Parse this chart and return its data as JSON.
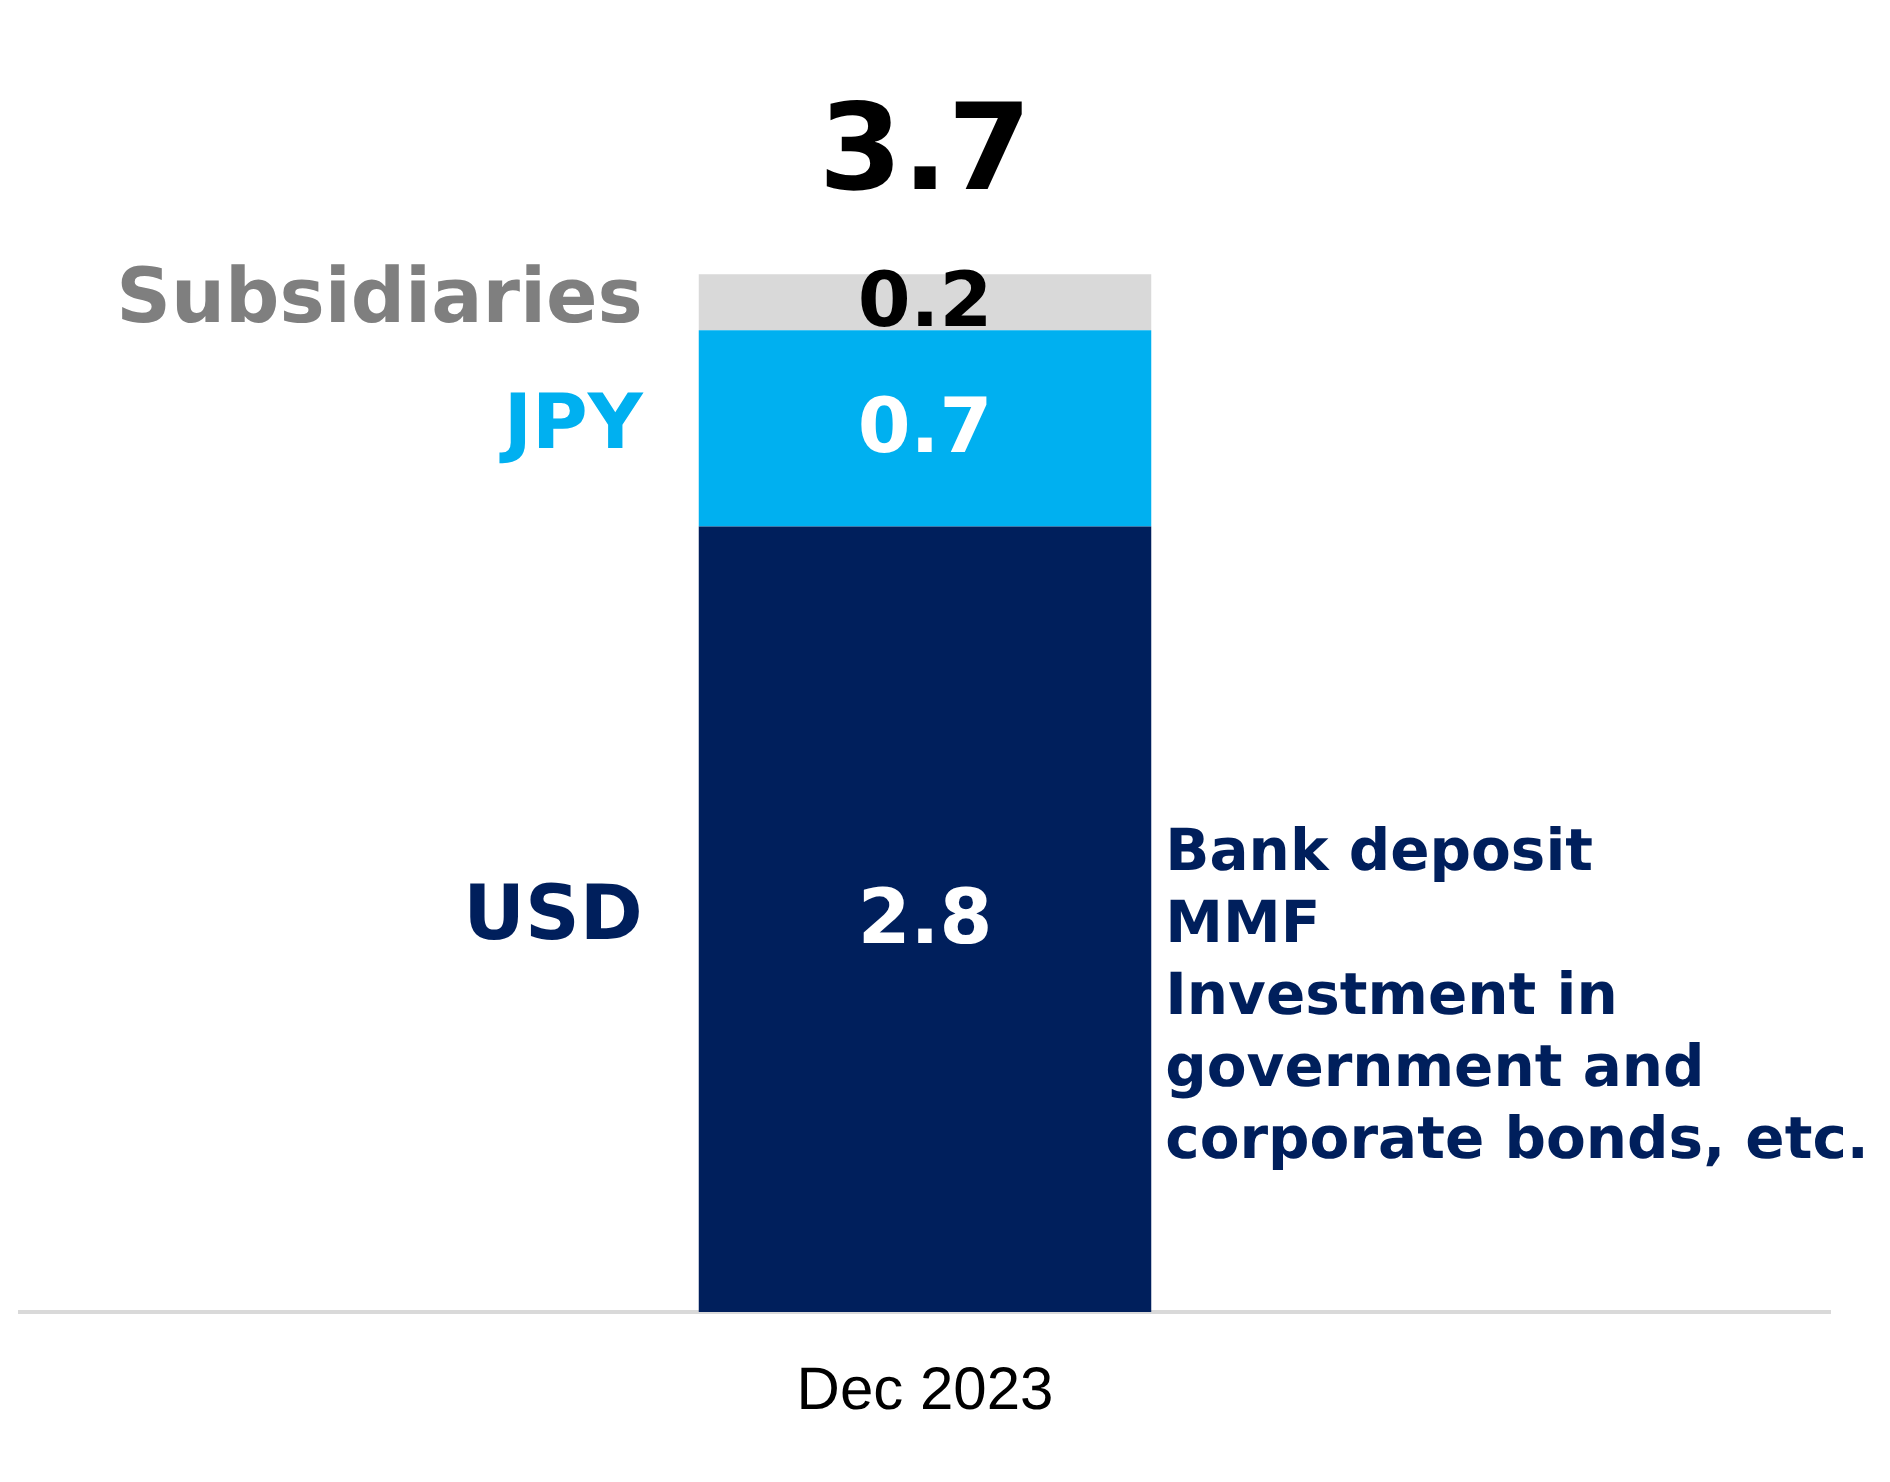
{
  "chart_data": {
    "type": "bar",
    "stacked": true,
    "categories": [
      "Dec 2023"
    ],
    "series": [
      {
        "name": "USD",
        "color": "#001f5c",
        "values": [
          2.8
        ]
      },
      {
        "name": "JPY",
        "color": "#00b0f0",
        "values": [
          0.7
        ]
      },
      {
        "name": "Subsidiaries",
        "color": "#d9d9d9",
        "values": [
          0.2
        ]
      }
    ],
    "data_labels": true,
    "totals": [
      "3.7"
    ],
    "legend": false,
    "grid": false,
    "annotations": [
      "Bank deposit\nMMF\nInvestment in\ngovernment and\ncorporate bonds, etc."
    ]
  }
}
